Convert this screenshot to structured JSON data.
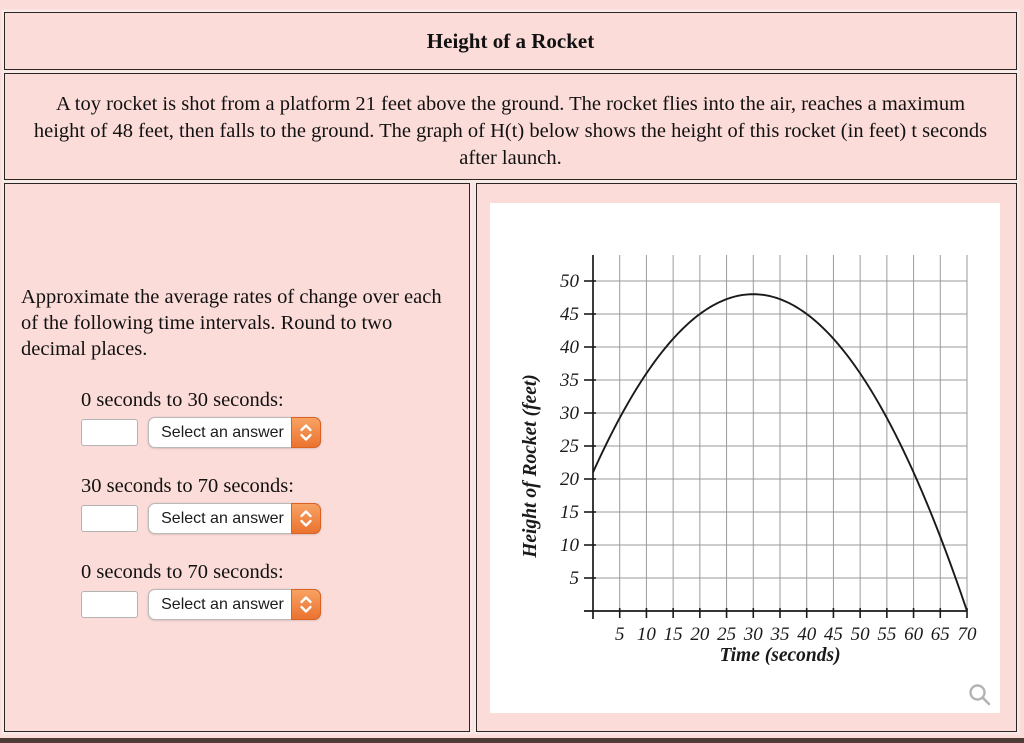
{
  "page": {
    "background_color": "#fbdcd9",
    "panel_border_color": "#2b2523",
    "bottom_bar_color": "#4e3c38"
  },
  "header": {
    "title": "Height of a Rocket"
  },
  "description": {
    "text": "A toy rocket is shot from a platform 21 feet above the ground. The rocket flies into the air, reaches a maximum height of 48 feet, then falls to the ground. The graph of H(t) below shows the height of this rocket (in feet) t seconds after launch."
  },
  "question": {
    "prompt": "Approximate the average rates of change over each of the following time intervals. Round to two decimal places.",
    "select_accent_color": "#eb7330",
    "items": [
      {
        "label": "0 seconds to 30 seconds:",
        "input_value": "",
        "select_label": "Select an answer"
      },
      {
        "label": "30 seconds to 70 seconds:",
        "input_value": "",
        "select_label": "Select an answer"
      },
      {
        "label": "0 seconds to 70 seconds:",
        "input_value": "",
        "select_label": "Select an answer"
      }
    ]
  },
  "chart_data": {
    "type": "line",
    "title": "",
    "xlabel": "Time (seconds)",
    "ylabel": "Height of Rocket (feet)",
    "xlim": [
      0,
      70
    ],
    "ylim": [
      0,
      54
    ],
    "xticks": [
      5,
      10,
      15,
      20,
      25,
      30,
      35,
      40,
      45,
      50,
      55,
      60,
      65,
      70
    ],
    "yticks": [
      5,
      10,
      15,
      20,
      25,
      30,
      35,
      40,
      45,
      50
    ],
    "grid": true,
    "legend": false,
    "key_points": {
      "launch": [
        0,
        21
      ],
      "peak": [
        30,
        48
      ],
      "landing": [
        70,
        0
      ]
    },
    "points": [
      [
        0,
        21
      ],
      [
        5,
        29.25
      ],
      [
        10,
        36
      ],
      [
        15,
        41.25
      ],
      [
        20,
        45
      ],
      [
        25,
        47.25
      ],
      [
        30,
        48
      ],
      [
        35,
        47.25
      ],
      [
        40,
        45
      ],
      [
        45,
        41.25
      ],
      [
        50,
        36
      ],
      [
        55,
        29.25
      ],
      [
        60,
        21
      ],
      [
        65,
        11.25
      ],
      [
        70,
        0
      ]
    ],
    "curve_color": "#1a1a1a",
    "grid_color": "#9a9a9a",
    "axis_color": "#1a1a1a"
  },
  "icons": {
    "zoom_icon_color": "#b3b3b3"
  }
}
